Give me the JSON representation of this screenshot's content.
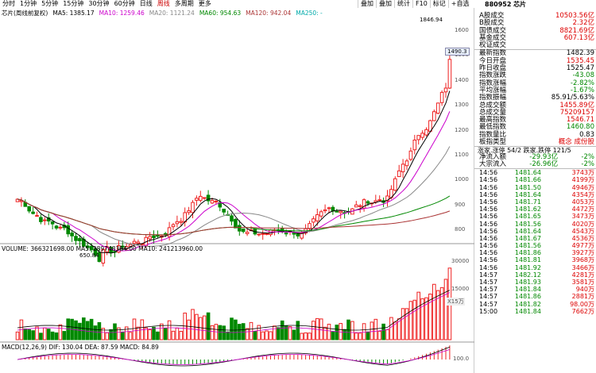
{
  "toolbar": {
    "periods": [
      "分时",
      "1分钟",
      "5分钟",
      "15分钟",
      "30分钟",
      "60分钟",
      "日线",
      "周线",
      "多周期",
      "更多"
    ],
    "active_period": "周线",
    "tools": [
      "叠加",
      "叠加",
      "统计",
      "F10",
      "标记",
      "+自选"
    ]
  },
  "header": {
    "stock_name": "芯片(周线前复权)",
    "ma5": "MA5: 1385.17",
    "ma10": "MA10: 1259.46",
    "ma20": "MA20: 1121.24",
    "ma60": "MA60: 954.63",
    "ma120": "MA120: 942.04",
    "ma250": "MA250: -"
  },
  "price_axis": [
    "1600",
    "1500",
    "1400",
    "1300",
    "1200",
    "1100",
    "1000",
    "900",
    "800"
  ],
  "current_price_tag": "1490.3",
  "high_label": "1846.94",
  "low_label": "650.84",
  "volume": {
    "legend": "VOLUME: 366321698.00  MA5: 289748384.00  MA10: 241213960.00",
    "axis": [
      "30000",
      "15000"
    ],
    "unit": "X15万"
  },
  "macd": {
    "legend": "MACD(12,26,9)  DIF: 130.04  DEA: 87.59  MACD: 84.89",
    "axis": [
      "100.0"
    ]
  },
  "chart_data": {
    "type": "candlestick",
    "colors": {
      "up": "#e22",
      "down": "#080",
      "ma5": "#000",
      "ma10": "#c0c",
      "ma20": "#888",
      "ma60": "#080",
      "ma120": "#a33"
    }
  },
  "quote": {
    "title": "880952 芯片",
    "rows1": [
      {
        "k": "A股成交",
        "v": "10503.56亿",
        "c": "red"
      },
      {
        "k": "B股成交",
        "v": "2.32亿",
        "c": "red"
      },
      {
        "k": "国债成交",
        "v": "8821.69亿",
        "c": "red"
      },
      {
        "k": "基金成交",
        "v": "607.13亿",
        "c": "red"
      },
      {
        "k": "权证成交",
        "v": "",
        "c": ""
      }
    ],
    "rows2": [
      {
        "k": "最新指数",
        "v": "1482.39",
        "c": ""
      },
      {
        "k": "今日开盘",
        "v": "1535.45",
        "c": "red"
      },
      {
        "k": "昨日收盘",
        "v": "1525.47",
        "c": ""
      },
      {
        "k": "指数涨跌",
        "v": "-43.08",
        "c": "green"
      },
      {
        "k": "指数涨幅",
        "v": "-2.82%",
        "c": "green"
      },
      {
        "k": "平均涨幅",
        "v": "-1.67%",
        "c": "green"
      },
      {
        "k": "指数振幅",
        "v": "85.91/5.63%",
        "c": ""
      },
      {
        "k": "总成交额",
        "v": "1455.89亿",
        "c": "red"
      },
      {
        "k": "总成交量",
        "v": "75209157",
        "c": "red"
      },
      {
        "k": "最高指数",
        "v": "1546.71",
        "c": "red"
      },
      {
        "k": "最低指数",
        "v": "1460.80",
        "c": "green"
      },
      {
        "k": "指数量比",
        "v": "0.83",
        "c": ""
      },
      {
        "k": "板指类型",
        "v": "概念 成份股",
        "c": "red"
      }
    ],
    "updown": "涨家.涨停  54/2  跌家.跌停 121/5",
    "flows": [
      {
        "k": "净流入额",
        "v": "-29.93亿",
        "p": "-2%"
      },
      {
        "k": "大宗流入",
        "v": "-26.96亿",
        "p": "-2%"
      }
    ],
    "trades": [
      [
        "14:56",
        "1481.64",
        "3743万"
      ],
      [
        "14:56",
        "1481.66",
        "4199万"
      ],
      [
        "14:56",
        "1481.50",
        "4946万"
      ],
      [
        "14:56",
        "1481.64",
        "4354万"
      ],
      [
        "14:56",
        "1481.71",
        "4053万"
      ],
      [
        "14:56",
        "1481.62",
        "4472万"
      ],
      [
        "14:56",
        "1481.65",
        "3473万"
      ],
      [
        "14:56",
        "1481.56",
        "4020万"
      ],
      [
        "14:56",
        "1481.64",
        "4543万"
      ],
      [
        "14:56",
        "1481.67",
        "4536万"
      ],
      [
        "14:56",
        "1481.56",
        "4977万"
      ],
      [
        "14:56",
        "1481.86",
        "3927万"
      ],
      [
        "14:56",
        "1481.81",
        "3968万"
      ],
      [
        "14:56",
        "1481.92",
        "3466万"
      ],
      [
        "14:57",
        "1482.12",
        "4281万"
      ],
      [
        "14:57",
        "1481.93",
        "3581万"
      ],
      [
        "14:57",
        "1481.84",
        "940万"
      ],
      [
        "14:57",
        "1481.86",
        "2881万"
      ],
      [
        "14:57",
        "1481.82",
        "98.00万"
      ],
      [
        "15:00",
        "1481.84",
        "7662万"
      ]
    ]
  }
}
